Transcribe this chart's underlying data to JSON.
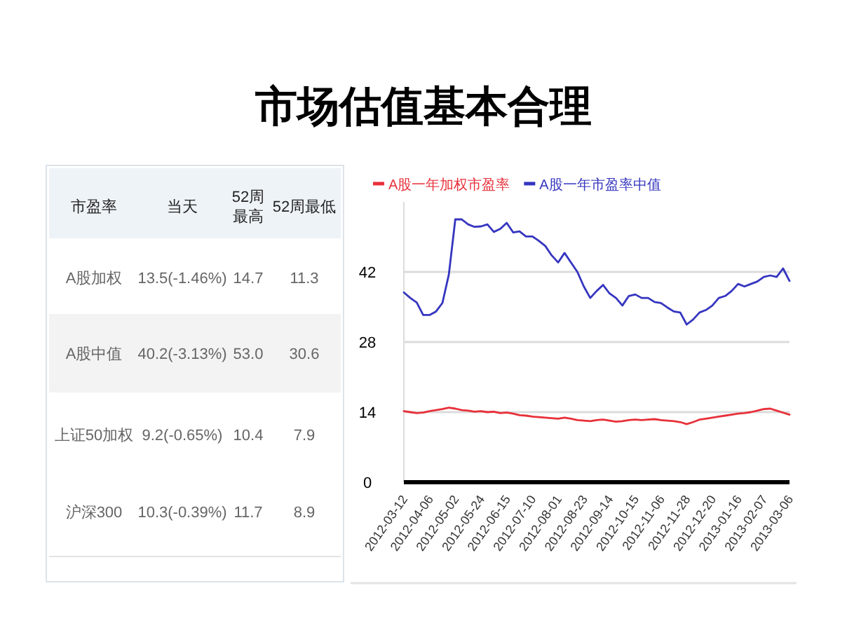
{
  "chart_data": [
    {
      "type": "other",
      "categories": [
        "市盈率",
        "当天",
        "52周最高",
        "52周最低"
      ],
      "y_categories": [
        "A股加权",
        "A股中值",
        "上证50加权",
        "沪深300"
      ],
      "cell_labels": [
        [
          "13.5(-1.46%)",
          "14.7",
          "11.3"
        ],
        [
          "40.2(-3.13%)",
          "53.0",
          "30.6"
        ],
        [
          "9.2(-0.65%)",
          "10.4",
          "7.9"
        ],
        [
          "10.3(-0.39%)",
          "11.7",
          "8.9"
        ]
      ]
    },
    {
      "type": "line",
      "title": "市场估值基本合理",
      "categories": [
        "2012-03-12",
        null,
        null,
        null,
        "2012-04-06",
        null,
        null,
        null,
        "2012-05-02",
        null,
        null,
        null,
        "2012-05-24",
        null,
        null,
        null,
        "2012-06-15",
        null,
        null,
        null,
        "2012-07-10",
        null,
        null,
        null,
        "2012-08-01",
        null,
        null,
        null,
        "2012-08-23",
        null,
        null,
        null,
        "2012-09-14",
        null,
        null,
        null,
        "2012-10-15",
        null,
        null,
        null,
        "2012-11-06",
        null,
        null,
        null,
        "2012-11-28",
        null,
        null,
        null,
        "2012-12-20",
        null,
        null,
        null,
        "2013-01-16",
        null,
        null,
        null,
        "2013-02-07",
        null,
        null,
        null,
        "2013-03-06"
      ],
      "series": [
        {
          "name": "A股一年加权市盈率",
          "color": "#e8303a",
          "values": [
            14.2,
            14.0,
            13.8,
            13.9,
            14.2,
            14.4,
            14.6,
            14.9,
            14.7,
            14.4,
            14.3,
            14.1,
            14.2,
            14.0,
            14.1,
            13.8,
            13.9,
            13.7,
            13.4,
            13.3,
            13.1,
            13.0,
            12.9,
            12.8,
            12.7,
            12.9,
            12.7,
            12.4,
            12.3,
            12.2,
            12.4,
            12.5,
            12.3,
            12.1,
            12.2,
            12.4,
            12.5,
            12.4,
            12.5,
            12.6,
            12.4,
            12.3,
            12.2,
            12.0,
            11.6,
            12.0,
            12.5,
            12.7,
            12.9,
            13.1,
            13.3,
            13.5,
            13.7,
            13.8,
            14.0,
            14.3,
            14.6,
            14.7,
            14.3,
            13.9,
            13.5
          ]
        },
        {
          "name": "A股一年市盈率中值",
          "color": "#3535c0",
          "values": [
            37.9,
            36.8,
            35.9,
            33.4,
            33.4,
            34.1,
            35.8,
            41.5,
            52.5,
            52.5,
            51.5,
            51.0,
            51.1,
            51.5,
            50.0,
            50.6,
            51.8,
            49.9,
            50.1,
            49.1,
            49.1,
            48.2,
            47.2,
            45.3,
            43.9,
            45.8,
            43.9,
            42.0,
            39.1,
            36.8,
            38.2,
            39.4,
            37.7,
            36.8,
            35.3,
            37.2,
            37.5,
            36.8,
            36.8,
            36.0,
            35.8,
            34.9,
            34.1,
            33.9,
            31.5,
            32.5,
            33.9,
            34.4,
            35.3,
            36.8,
            37.2,
            38.2,
            39.6,
            39.1,
            39.6,
            40.1,
            41.0,
            41.3,
            41.0,
            42.7,
            40.2
          ]
        }
      ],
      "ylim": [
        0,
        56
      ],
      "yticks": [
        0,
        14,
        28,
        42
      ],
      "grid": "y",
      "legend": "top left",
      "marker": "none",
      "line_style": "solid"
    }
  ]
}
